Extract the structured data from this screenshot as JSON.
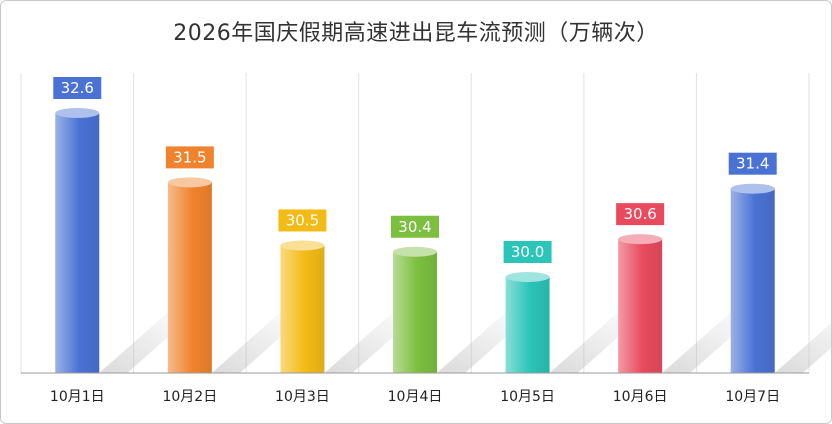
{
  "chart_data": {
    "type": "bar",
    "title": "2026年国庆假期高速进出昆车流预测（万辆次）",
    "categories": [
      "10月1日",
      "10月2日",
      "10月3日",
      "10月4日",
      "10月5日",
      "10月6日",
      "10月7日"
    ],
    "values": [
      32.6,
      31.5,
      30.5,
      30.4,
      30.0,
      30.6,
      31.4
    ],
    "value_labels": [
      "32.6",
      "31.5",
      "30.5",
      "30.4",
      "30.0",
      "30.6",
      "31.4"
    ],
    "colors": [
      "#4a72d4",
      "#f0842e",
      "#f2bb16",
      "#7cbf3f",
      "#2bc4b8",
      "#e94a5e",
      "#4a72d4"
    ],
    "ylim": [
      0,
      32.6
    ],
    "grid": "vertical",
    "legend": "none"
  }
}
